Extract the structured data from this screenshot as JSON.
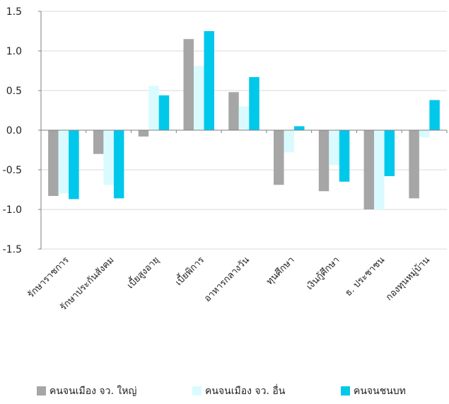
{
  "chart_data": {
    "type": "bar",
    "categories": [
      "รักษาราชการ",
      "รักษาประกันสังคม",
      "เบี้ยสูงอายุ",
      "เบี้ยพิการ",
      "อาหารกลางวัน",
      "ทุนศึกษา",
      "เงินกู้ศึกษา",
      "ธ. ประชาชน",
      "กองทุนหมู่บ้าน"
    ],
    "series": [
      {
        "name": "คนจนเมือง จว. ใหญ่",
        "color": "#a6a6a6",
        "values": [
          -0.83,
          -0.3,
          -0.08,
          1.15,
          0.48,
          -0.69,
          -0.77,
          -1.0,
          -0.86
        ]
      },
      {
        "name": "คนจนเมือง จว. อื่น",
        "color": "#d9fbff",
        "values": [
          -0.8,
          -0.69,
          0.56,
          0.81,
          0.3,
          -0.28,
          -0.44,
          -1.0,
          -0.09
        ]
      },
      {
        "name": "คนจนชนบท",
        "color": "#00c8ea",
        "values": [
          -0.87,
          -0.86,
          0.44,
          1.25,
          0.67,
          0.05,
          -0.65,
          -0.58,
          0.38
        ]
      }
    ],
    "ylim": [
      -1.5,
      1.5
    ],
    "yticks": [
      "1.5",
      "1.0",
      "0.5",
      "0.0",
      "-0.5",
      "-1.0",
      "-1.5"
    ],
    "grid": true,
    "legend": "bottom"
  }
}
